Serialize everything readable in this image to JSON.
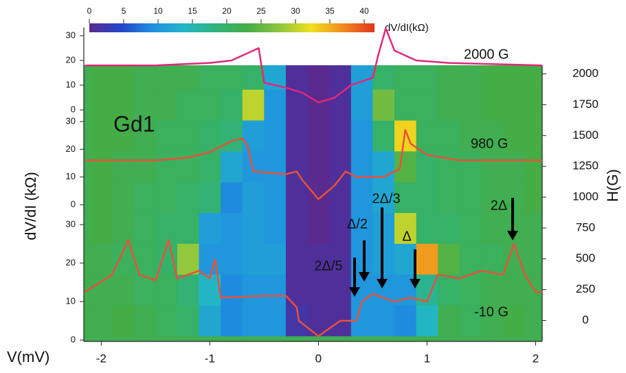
{
  "chart_data": [
    {
      "type": "heatmap",
      "title": "Gd1",
      "xlabel": "V(mV)",
      "ylabel": "H(G)",
      "xlim": [
        -2.16,
        2.06
      ],
      "xticks": [
        -2,
        -1,
        0,
        1,
        2
      ],
      "ylim": [
        -170,
        2070
      ],
      "yticks": [
        0,
        250,
        500,
        750,
        1000,
        1250,
        1500,
        1750,
        2000
      ],
      "x": [
        -2.0,
        -1.8,
        -1.6,
        -1.4,
        -1.2,
        -1.0,
        -0.8,
        -0.6,
        -0.4,
        -0.2,
        0.0,
        0.2,
        0.4,
        0.6,
        0.8,
        1.0,
        1.2,
        1.4,
        1.6,
        1.8,
        2.0
      ],
      "y": [
        0,
        250,
        500,
        750,
        1000,
        1250,
        1500,
        1750,
        2000
      ],
      "values": [
        [
          22,
          23,
          22,
          21,
          20,
          12,
          9,
          10,
          10,
          2,
          1,
          1,
          10,
          10,
          9,
          14,
          22,
          21,
          22,
          23,
          22
        ],
        [
          22,
          22,
          21,
          21,
          19,
          14,
          9,
          10,
          10,
          1,
          1,
          1,
          10,
          10,
          10,
          17,
          20,
          21,
          22,
          22,
          22
        ],
        [
          22,
          21,
          21,
          20,
          28,
          10,
          10,
          11,
          11,
          1,
          1,
          1,
          10,
          11,
          12,
          36,
          24,
          21,
          21,
          22,
          22
        ],
        [
          23,
          22,
          21,
          20,
          20,
          11,
          10,
          11,
          10,
          1,
          0,
          1,
          10,
          11,
          30,
          20,
          20,
          21,
          22,
          22,
          22
        ],
        [
          23,
          22,
          21,
          21,
          20,
          19,
          9,
          11,
          10,
          1,
          0,
          1,
          10,
          12,
          20,
          20,
          21,
          21,
          22,
          22,
          23
        ],
        [
          23,
          22,
          22,
          21,
          21,
          20,
          12,
          10,
          10,
          1,
          0,
          1,
          10,
          12,
          24,
          20,
          21,
          21,
          22,
          22,
          23
        ],
        [
          23,
          23,
          22,
          21,
          21,
          20,
          19,
          11,
          10,
          1,
          0,
          1,
          10,
          20,
          33,
          21,
          21,
          22,
          22,
          23,
          23
        ],
        [
          23,
          23,
          22,
          22,
          21,
          21,
          20,
          30,
          10,
          1,
          0,
          1,
          11,
          26,
          21,
          21,
          22,
          22,
          23,
          23,
          23
        ],
        [
          23,
          23,
          22,
          22,
          22,
          21,
          21,
          20,
          12,
          1,
          0,
          1,
          11,
          20,
          21,
          21,
          22,
          22,
          23,
          23,
          23
        ]
      ],
      "colorbar": {
        "label": "dV/dI(kΩ)",
        "lim": [
          0,
          41.5
        ],
        "ticks": [
          0,
          5,
          10,
          15,
          20,
          25,
          30,
          35,
          40
        ],
        "colors": [
          "#5b2a8e",
          "#2346c8",
          "#1f8fe0",
          "#22b6c8",
          "#2fb37a",
          "#45ad45",
          "#8cc63e",
          "#f0e01e",
          "#f08a1e",
          "#e0341e"
        ]
      },
      "annotations": [
        "2Δ/5",
        "Δ/2",
        "2Δ/3",
        "Δ",
        "2Δ"
      ]
    },
    {
      "type": "line",
      "label": "2000 G",
      "color": "#e0287a",
      "ylabel": "dV/dI (kΩ)",
      "ylim": [
        0,
        30
      ],
      "yticks": [
        0,
        10,
        20,
        30
      ],
      "x": [
        -2.15,
        -1.5,
        -1.0,
        -0.8,
        -0.6,
        -0.55,
        -0.5,
        -0.3,
        -0.15,
        0.0,
        0.15,
        0.3,
        0.5,
        0.55,
        0.62,
        0.7,
        0.9,
        1.2,
        2.06
      ],
      "values": [
        18,
        18,
        19,
        20,
        24,
        25,
        11,
        9,
        7,
        3,
        5,
        10,
        13,
        22,
        33,
        24,
        20,
        19,
        18
      ]
    },
    {
      "type": "line",
      "label": "980 G",
      "color": "#e8513a",
      "ylim": [
        0,
        30
      ],
      "yticks": [
        0,
        10,
        20,
        30
      ],
      "x": [
        -2.15,
        -1.5,
        -1.2,
        -1.0,
        -0.8,
        -0.7,
        -0.65,
        -0.6,
        -0.3,
        -0.2,
        -0.15,
        0.0,
        0.15,
        0.25,
        0.35,
        0.6,
        0.75,
        0.8,
        0.85,
        1.0,
        1.3,
        2.06
      ],
      "values": [
        16,
        16,
        17,
        19,
        23,
        24,
        21,
        12,
        11,
        12,
        9,
        2,
        7,
        12,
        10,
        10,
        13,
        27,
        22,
        18,
        16,
        16
      ]
    },
    {
      "type": "line",
      "label": "-10 G",
      "color": "#e8513a",
      "ylim": [
        0,
        30
      ],
      "yticks": [
        0,
        10,
        20,
        30
      ],
      "x": [
        -2.15,
        -1.9,
        -1.75,
        -1.65,
        -1.5,
        -1.38,
        -1.3,
        -1.1,
        -1.0,
        -0.95,
        -0.9,
        -0.5,
        -0.3,
        -0.2,
        -0.18,
        0.0,
        0.2,
        0.35,
        0.4,
        0.5,
        0.7,
        0.85,
        1.0,
        1.1,
        1.3,
        1.5,
        1.7,
        1.8,
        1.9,
        2.0,
        2.06
      ],
      "values": [
        12.5,
        17,
        26,
        17,
        15.5,
        26,
        16,
        18,
        16,
        21,
        11,
        11.5,
        11.5,
        8.5,
        5,
        1,
        5,
        5,
        10,
        12,
        10,
        11,
        10,
        17,
        16,
        18,
        17,
        25,
        17,
        12.5,
        12.5
      ]
    }
  ]
}
